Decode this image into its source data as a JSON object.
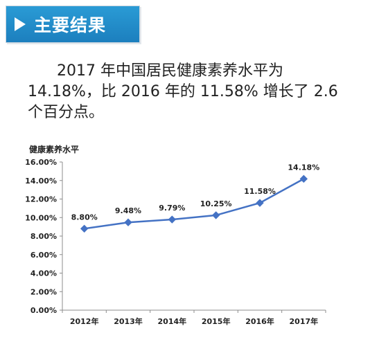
{
  "banner": {
    "title": "主要结果",
    "arrow_icon": "play-triangle-icon"
  },
  "summary": {
    "line1": "2017 年中国居民健康素养水平为",
    "line2": "14.18%，比 2016 年的 11.58% 增长了 2.6",
    "line3": "个百分点。"
  },
  "colors": {
    "banner": "#1f88c8",
    "line": "#4472c4",
    "text": "#222222"
  },
  "chart_data": {
    "type": "line",
    "title": "健康素养水平",
    "categories": [
      "2012年",
      "2013年",
      "2014年",
      "2015年",
      "2016年",
      "2017年"
    ],
    "values": [
      8.8,
      9.48,
      9.79,
      10.25,
      11.58,
      14.18
    ],
    "data_labels": [
      "8.80%",
      "9.48%",
      "9.79%",
      "10.25%",
      "11.58%",
      "14.18%"
    ],
    "y_ticks": [
      "0.00%",
      "2.00%",
      "4.00%",
      "6.00%",
      "8.00%",
      "10.00%",
      "12.00%",
      "14.00%",
      "16.00%"
    ],
    "ylim": [
      0,
      16
    ],
    "grid": false,
    "marker": "diamond"
  }
}
